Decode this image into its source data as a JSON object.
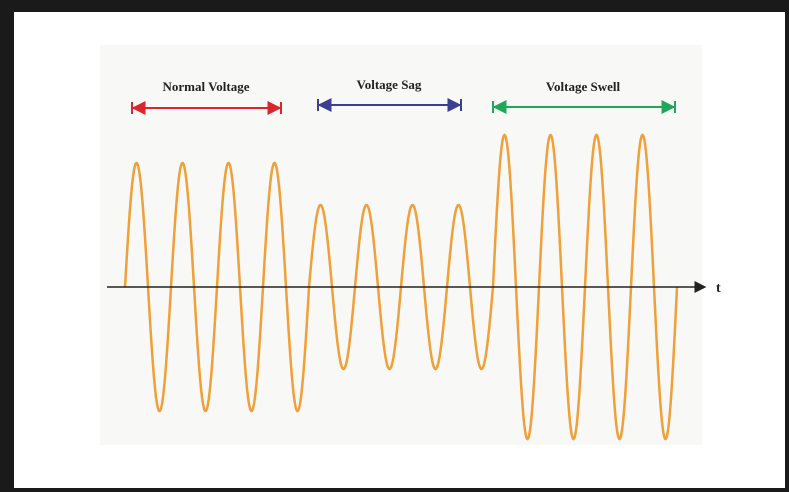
{
  "labels": {
    "normal": "Normal Voltage",
    "sag": "Voltage Sag",
    "swell": "Voltage Swell"
  },
  "axis_label": "t"
}
